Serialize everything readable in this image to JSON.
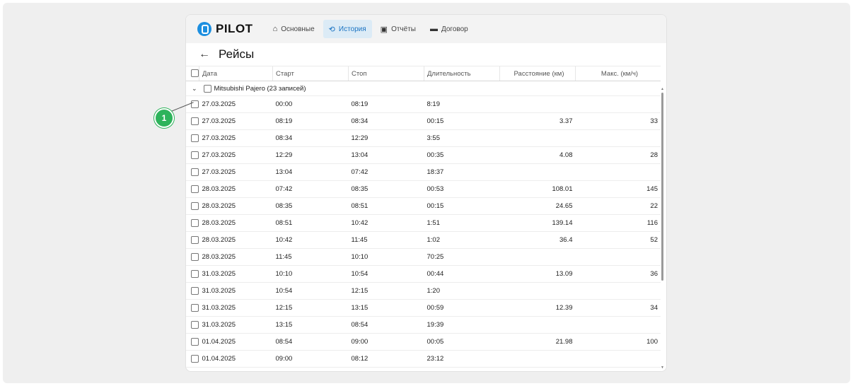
{
  "brand": {
    "logo_text": "PILOT",
    "color": "#1d8fe0"
  },
  "nav": [
    {
      "label": "Основные",
      "icon": "home-icon",
      "active": false
    },
    {
      "label": "История",
      "icon": "history-icon",
      "active": true
    },
    {
      "label": "Отчёты",
      "icon": "document-icon",
      "active": false
    },
    {
      "label": "Договор",
      "icon": "contract-icon",
      "active": false
    }
  ],
  "page": {
    "title": "Рейсы",
    "back_icon": "arrow-left-icon"
  },
  "table": {
    "columns": [
      "Дата",
      "Старт",
      "Стоп",
      "Длительность",
      "Расстояние (км)",
      "Макс. (км/ч)"
    ],
    "group_label": "Mitsubishi Pajero (23 записей)",
    "rows": [
      [
        "27.03.2025",
        "00:00",
        "08:19",
        "8:19",
        "",
        ""
      ],
      [
        "27.03.2025",
        "08:19",
        "08:34",
        "00:15",
        "3.37",
        "33"
      ],
      [
        "27.03.2025",
        "08:34",
        "12:29",
        "3:55",
        "",
        ""
      ],
      [
        "27.03.2025",
        "12:29",
        "13:04",
        "00:35",
        "4.08",
        "28"
      ],
      [
        "27.03.2025",
        "13:04",
        "07:42",
        "18:37",
        "",
        ""
      ],
      [
        "28.03.2025",
        "07:42",
        "08:35",
        "00:53",
        "108.01",
        "145"
      ],
      [
        "28.03.2025",
        "08:35",
        "08:51",
        "00:15",
        "24.65",
        "22"
      ],
      [
        "28.03.2025",
        "08:51",
        "10:42",
        "1:51",
        "139.14",
        "116"
      ],
      [
        "28.03.2025",
        "10:42",
        "11:45",
        "1:02",
        "36.4",
        "52"
      ],
      [
        "28.03.2025",
        "11:45",
        "10:10",
        "70:25",
        "",
        ""
      ],
      [
        "31.03.2025",
        "10:10",
        "10:54",
        "00:44",
        "13.09",
        "36"
      ],
      [
        "31.03.2025",
        "10:54",
        "12:15",
        "1:20",
        "",
        ""
      ],
      [
        "31.03.2025",
        "12:15",
        "13:15",
        "00:59",
        "12.39",
        "34"
      ],
      [
        "31.03.2025",
        "13:15",
        "08:54",
        "19:39",
        "",
        ""
      ],
      [
        "01.04.2025",
        "08:54",
        "09:00",
        "00:05",
        "21.98",
        "100"
      ],
      [
        "01.04.2025",
        "09:00",
        "08:12",
        "23:12",
        "",
        ""
      ]
    ]
  },
  "annotation": {
    "label": "1",
    "color": "#2eb35b"
  }
}
